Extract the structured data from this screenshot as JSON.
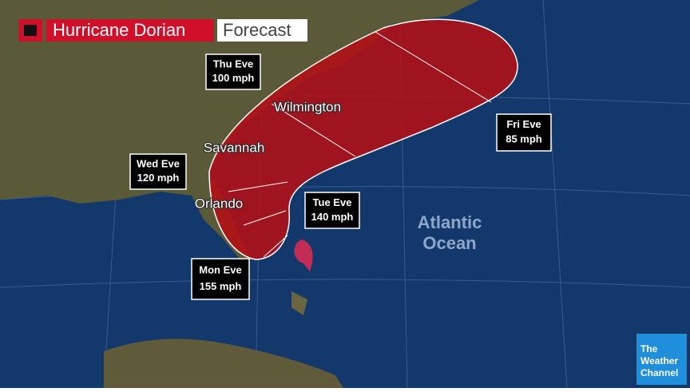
{
  "header": {
    "title": "Hurricane Dorian",
    "subtitle": "Forecast"
  },
  "forecast_points": [
    {
      "day": "Thu Eve",
      "speed": "100 mph"
    },
    {
      "day": "Wed Eve",
      "speed": "120 mph"
    },
    {
      "day": "Tue Eve",
      "speed": "140 mph"
    },
    {
      "day": "Mon Eve",
      "speed": "155 mph"
    },
    {
      "day": "Fri Eve",
      "speed": "85 mph"
    }
  ],
  "cities": [
    "Wilmington",
    "Savannah",
    "Orlando"
  ],
  "ocean_label": [
    "Atlantic",
    "Ocean"
  ],
  "logo": [
    "The",
    "Weather",
    "Channel"
  ]
}
